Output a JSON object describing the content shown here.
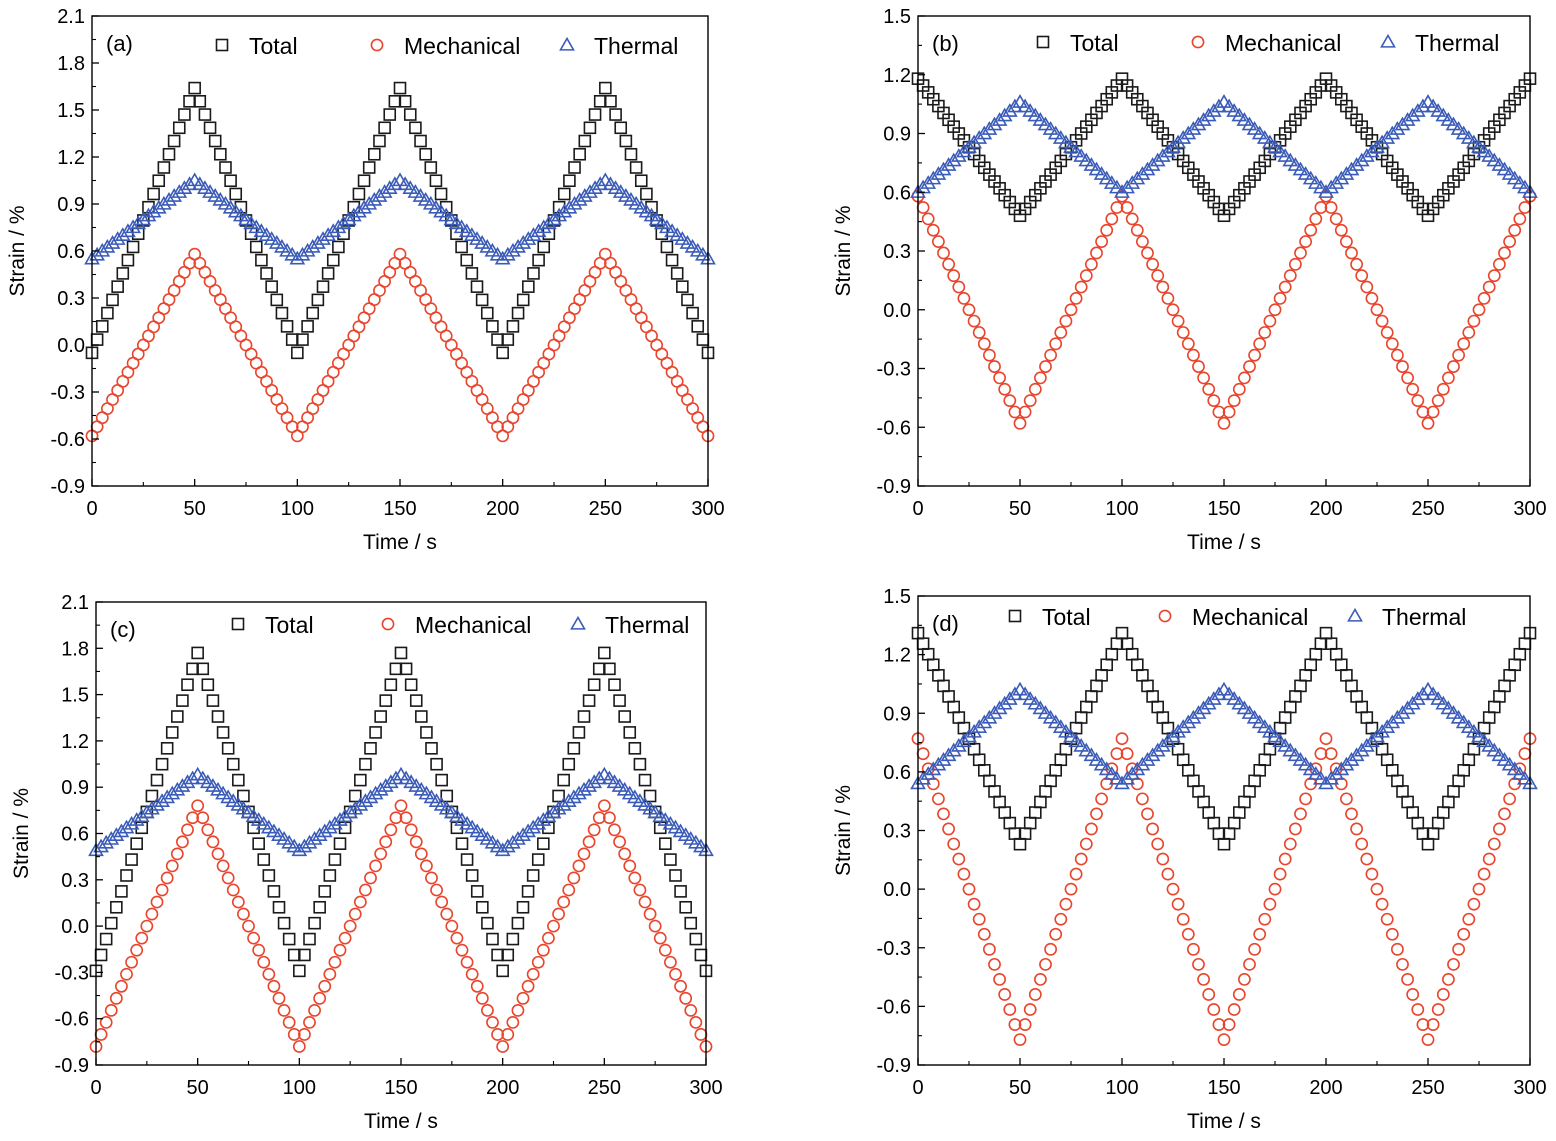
{
  "colors": {
    "total": "#1a1a1a",
    "mechanical": "#e8452c",
    "thermal": "#3a5bb8"
  },
  "chart_data": [
    {
      "type": "scatter",
      "panel_label": "(a)",
      "xlabel": "Time / s",
      "ylabel": "Strain / %",
      "xlim": [
        0,
        300
      ],
      "ylim": [
        -0.9,
        2.1
      ],
      "xticks": [
        "0",
        "50",
        "100",
        "150",
        "200",
        "250",
        "300"
      ],
      "yticks": [
        "-0.9",
        "-0.6",
        "-0.3",
        "0.0",
        "0.3",
        "0.6",
        "0.9",
        "1.2",
        "1.5",
        "1.8",
        "2.1"
      ],
      "legend_position": "top",
      "series": [
        {
          "name": "Total",
          "marker": "square",
          "x": [
            0,
            50,
            100,
            150,
            200,
            250,
            300
          ],
          "y": [
            -0.05,
            1.64,
            -0.05,
            1.64,
            -0.05,
            1.64,
            -0.05
          ]
        },
        {
          "name": "Mechanical",
          "marker": "circle",
          "x": [
            0,
            50,
            100,
            150,
            200,
            250,
            300
          ],
          "y": [
            -0.58,
            0.58,
            -0.58,
            0.58,
            -0.58,
            0.58,
            -0.58
          ]
        },
        {
          "name": "Thermal",
          "marker": "triangle",
          "x": [
            0,
            50,
            100,
            150,
            200,
            250,
            300
          ],
          "y": [
            0.55,
            1.05,
            0.55,
            1.05,
            0.55,
            1.05,
            0.55
          ]
        }
      ]
    },
    {
      "type": "scatter",
      "panel_label": "(b)",
      "xlabel": "Time / s",
      "ylabel": "Strain / %",
      "xlim": [
        0,
        300
      ],
      "ylim": [
        -0.9,
        1.5
      ],
      "xticks": [
        "0",
        "50",
        "100",
        "150",
        "200",
        "250",
        "300"
      ],
      "yticks": [
        "-0.9",
        "-0.6",
        "-0.3",
        "0.0",
        "0.3",
        "0.6",
        "0.9",
        "1.2",
        "1.5"
      ],
      "legend_position": "top",
      "series": [
        {
          "name": "Total",
          "marker": "square",
          "x": [
            0,
            50,
            100,
            150,
            200,
            250,
            300
          ],
          "y": [
            1.18,
            0.48,
            1.18,
            0.48,
            1.18,
            0.48,
            1.18
          ]
        },
        {
          "name": "Mechanical",
          "marker": "circle",
          "x": [
            0,
            50,
            100,
            150,
            200,
            250,
            300
          ],
          "y": [
            0.58,
            -0.58,
            0.58,
            -0.58,
            0.58,
            -0.58,
            0.58
          ]
        },
        {
          "name": "Thermal",
          "marker": "triangle",
          "x": [
            0,
            50,
            100,
            150,
            200,
            250,
            300
          ],
          "y": [
            0.6,
            1.06,
            0.6,
            1.06,
            0.6,
            1.06,
            0.6
          ]
        }
      ]
    },
    {
      "type": "scatter",
      "panel_label": "(c)",
      "xlabel": "Time / s",
      "ylabel": "Strain / %",
      "xlim": [
        0,
        300
      ],
      "ylim": [
        -0.9,
        2.1
      ],
      "xticks": [
        "0",
        "50",
        "100",
        "150",
        "200",
        "250",
        "300"
      ],
      "yticks": [
        "-0.9",
        "-0.6",
        "-0.3",
        "0.0",
        "0.3",
        "0.6",
        "0.9",
        "1.2",
        "1.5",
        "1.8",
        "2.1"
      ],
      "legend_position": "top",
      "series": [
        {
          "name": "Total",
          "marker": "square",
          "x": [
            0,
            50,
            100,
            150,
            200,
            250,
            300
          ],
          "y": [
            -0.29,
            1.77,
            -0.29,
            1.77,
            -0.29,
            1.77,
            -0.29
          ]
        },
        {
          "name": "Mechanical",
          "marker": "circle",
          "x": [
            0,
            50,
            100,
            150,
            200,
            250,
            300
          ],
          "y": [
            -0.78,
            0.78,
            -0.78,
            0.78,
            -0.78,
            0.78,
            -0.78
          ]
        },
        {
          "name": "Thermal",
          "marker": "triangle",
          "x": [
            0,
            50,
            100,
            150,
            200,
            250,
            300
          ],
          "y": [
            0.49,
            0.98,
            0.49,
            0.98,
            0.49,
            0.98,
            0.49
          ]
        }
      ]
    },
    {
      "type": "scatter",
      "panel_label": "(d)",
      "xlabel": "Time / s",
      "ylabel": "Strain / %",
      "xlim": [
        0,
        300
      ],
      "ylim": [
        -0.9,
        1.5
      ],
      "xticks": [
        "0",
        "50",
        "100",
        "150",
        "200",
        "250",
        "300"
      ],
      "yticks": [
        "-0.9",
        "-0.6",
        "-0.3",
        "0.0",
        "0.3",
        "0.6",
        "0.9",
        "1.2",
        "1.5"
      ],
      "legend_position": "top",
      "series": [
        {
          "name": "Total",
          "marker": "square",
          "x": [
            0,
            50,
            100,
            150,
            200,
            250,
            300
          ],
          "y": [
            1.31,
            0.23,
            1.31,
            0.23,
            1.31,
            0.23,
            1.31
          ]
        },
        {
          "name": "Mechanical",
          "marker": "circle",
          "x": [
            0,
            50,
            100,
            150,
            200,
            250,
            300
          ],
          "y": [
            0.77,
            -0.77,
            0.77,
            -0.77,
            0.77,
            -0.77,
            0.77
          ]
        },
        {
          "name": "Thermal",
          "marker": "triangle",
          "x": [
            0,
            50,
            100,
            150,
            200,
            250,
            300
          ],
          "y": [
            0.54,
            1.02,
            0.54,
            1.02,
            0.54,
            1.02,
            0.54
          ]
        }
      ]
    }
  ]
}
